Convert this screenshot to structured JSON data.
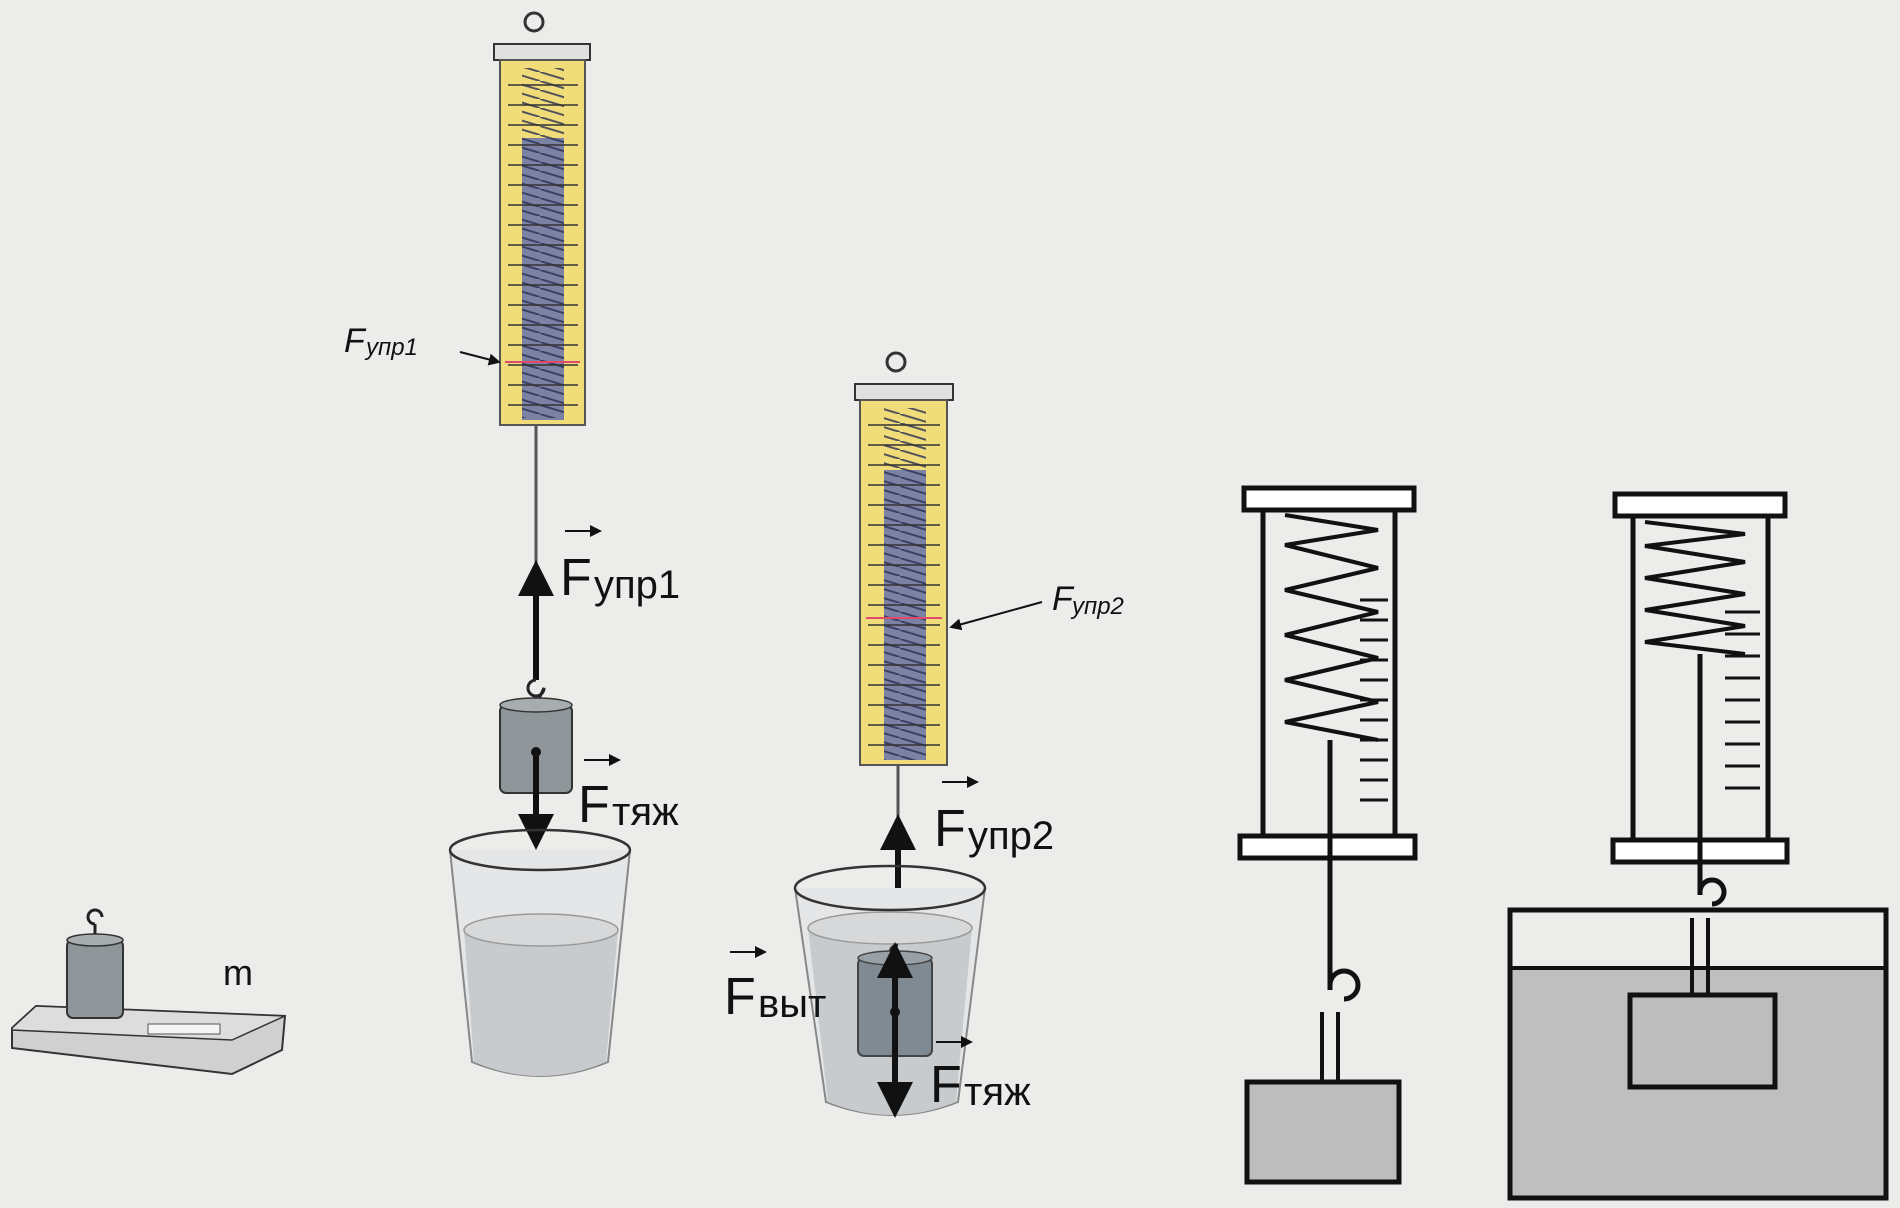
{
  "labels": {
    "f_upr1_pointer": {
      "main": "F",
      "sub": "упр1"
    },
    "f_upr2_pointer": {
      "main": "F",
      "sub": "упр2"
    },
    "f_upr1_vector": {
      "main": "F",
      "sub": "упр1"
    },
    "f_tyazh1_vector": {
      "main": "F",
      "sub": "тяж"
    },
    "f_upr2_vector": {
      "main": "F",
      "sub": "упр2"
    },
    "f_vyt_vector": {
      "main": "F",
      "sub": "выт"
    },
    "f_tyazh2_vector": {
      "main": "F",
      "sub": "тяж"
    },
    "mass": "m"
  },
  "colors": {
    "background": "#ececea",
    "dynamometer_body": "#f0dc78",
    "scale_core": "#6f78a8",
    "weight": "#8f9699",
    "water": "#c8cbcd",
    "block_fill": "#bdbdbd",
    "ink": "#111111"
  }
}
